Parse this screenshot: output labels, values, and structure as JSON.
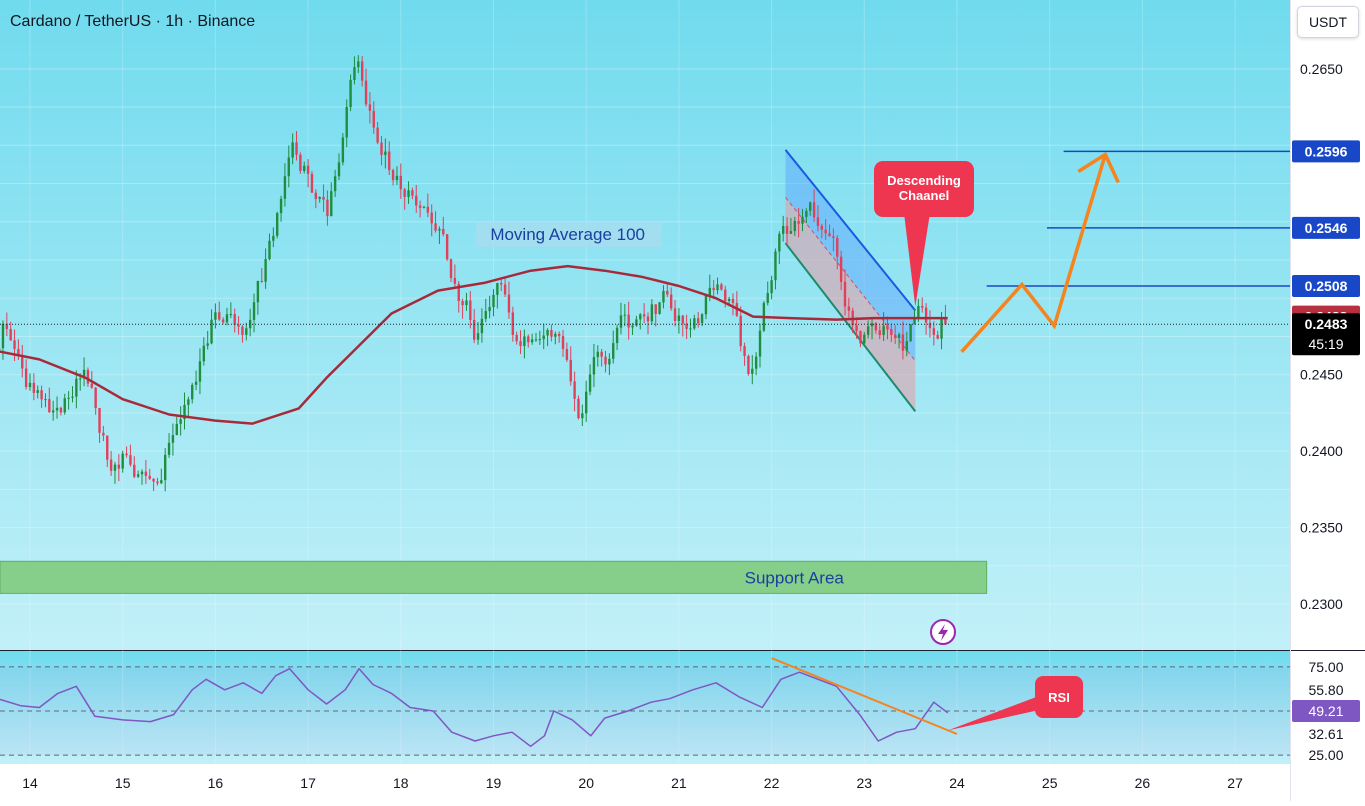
{
  "header": {
    "title": "Cardano / TetherUS · 1h · Binance",
    "currency_button": "USDT"
  },
  "colors": {
    "bg_top": "#70dbee",
    "bg_bottom": "#c2f0f8",
    "bull": "#1e8e3e",
    "bear": "#e0405a",
    "ma": "#a82a3a",
    "level": "#1848c8",
    "path": "#f5841f",
    "rsi": "#7e57c2",
    "support": "#86cf8a",
    "callout": "#ef3650"
  },
  "chart_data": [
    {
      "type": "candlestick",
      "symbol": "Cardano / TetherUS",
      "interval": "1h",
      "exchange": "Binance",
      "x_tick_labels": [
        "14",
        "15",
        "16",
        "17",
        "18",
        "19",
        "20",
        "21",
        "22",
        "23",
        "24",
        "25",
        "26",
        "27"
      ],
      "y_tick_labels": [
        "0.2650",
        "0.2450",
        "0.2400",
        "0.2350",
        "0.2300"
      ],
      "ylim": [
        0.227,
        0.2695
      ],
      "price_labels": [
        {
          "value": 0.2596,
          "label": "0.2596",
          "kind": "level"
        },
        {
          "value": 0.2546,
          "label": "0.2546",
          "kind": "level"
        },
        {
          "value": 0.2508,
          "label": "0.2508",
          "kind": "level"
        },
        {
          "value": 0.2488,
          "label": "0.2488",
          "kind": "ma"
        },
        {
          "value": 0.2483,
          "label": "0.2483",
          "kind": "last",
          "countdown": "45:19"
        }
      ],
      "last_price": 0.2483,
      "candle_anchors": [
        [
          13.35,
          0.239
        ],
        [
          13.7,
          0.248
        ],
        [
          13.95,
          0.244
        ],
        [
          14.2,
          0.242
        ],
        [
          14.45,
          0.2445
        ],
        [
          14.6,
          0.246
        ],
        [
          14.85,
          0.2395
        ],
        [
          15.1,
          0.2395
        ],
        [
          15.35,
          0.2385
        ],
        [
          15.7,
          0.244
        ],
        [
          16.0,
          0.249
        ],
        [
          16.35,
          0.249
        ],
        [
          16.6,
          0.253
        ],
        [
          16.85,
          0.26
        ],
        [
          17.2,
          0.255
        ],
        [
          17.55,
          0.266
        ],
        [
          17.7,
          0.262
        ],
        [
          17.9,
          0.259
        ],
        [
          18.3,
          0.256
        ],
        [
          18.6,
          0.251
        ],
        [
          18.8,
          0.248
        ],
        [
          19.05,
          0.25
        ],
        [
          19.3,
          0.246
        ],
        [
          19.55,
          0.249
        ],
        [
          19.75,
          0.246
        ],
        [
          19.9,
          0.242
        ],
        [
          20.1,
          0.245
        ],
        [
          20.3,
          0.247
        ],
        [
          20.6,
          0.249
        ],
        [
          20.85,
          0.25
        ],
        [
          21.05,
          0.248
        ],
        [
          21.3,
          0.25
        ],
        [
          21.55,
          0.249
        ],
        [
          21.75,
          0.245
        ],
        [
          21.9,
          0.249
        ],
        [
          22.1,
          0.2555
        ],
        [
          22.45,
          0.2555
        ],
        [
          22.7,
          0.253
        ],
        [
          22.9,
          0.248
        ],
        [
          23.1,
          0.247
        ],
        [
          23.3,
          0.247
        ],
        [
          23.45,
          0.246
        ],
        [
          23.6,
          0.249
        ],
        [
          23.75,
          0.246
        ],
        [
          23.9,
          0.249
        ]
      ],
      "moving_average": {
        "label": "Moving Average 100",
        "points": [
          [
            13.2,
            0.2475
          ],
          [
            13.6,
            0.2466
          ],
          [
            14.1,
            0.246
          ],
          [
            14.6,
            0.2448
          ],
          [
            15.0,
            0.2434
          ],
          [
            15.5,
            0.2424
          ],
          [
            16.0,
            0.242
          ],
          [
            16.4,
            0.2418
          ],
          [
            16.9,
            0.2428
          ],
          [
            17.2,
            0.2448
          ],
          [
            17.5,
            0.2466
          ],
          [
            17.9,
            0.249
          ],
          [
            18.4,
            0.2505
          ],
          [
            18.9,
            0.251
          ],
          [
            19.4,
            0.2518
          ],
          [
            19.8,
            0.2521
          ],
          [
            20.2,
            0.2518
          ],
          [
            20.6,
            0.2514
          ],
          [
            21.0,
            0.2508
          ],
          [
            21.4,
            0.25
          ],
          [
            21.8,
            0.2488
          ],
          [
            22.2,
            0.2487
          ],
          [
            22.7,
            0.2486
          ],
          [
            23.1,
            0.2487
          ],
          [
            23.5,
            0.2487
          ],
          [
            23.9,
            0.2487
          ]
        ]
      },
      "horizontal_levels": [
        {
          "value": 0.2596,
          "x_start": 25.15
        },
        {
          "value": 0.2546,
          "x_start": 24.97
        },
        {
          "value": 0.2508,
          "x_start": 24.32
        }
      ],
      "descending_channel": {
        "label": "Descending Chaanel",
        "upper": [
          [
            22.15,
            0.2597
          ],
          [
            23.55,
            0.2492
          ]
        ],
        "lower": [
          [
            22.15,
            0.2536
          ],
          [
            23.55,
            0.2426
          ]
        ],
        "mid": [
          [
            22.15,
            0.2566
          ],
          [
            23.55,
            0.2459
          ]
        ]
      },
      "projection_path": [
        [
          24.05,
          0.2465
        ],
        [
          24.7,
          0.2509
        ],
        [
          25.05,
          0.2482
        ],
        [
          25.6,
          0.2594
        ]
      ],
      "support_area": {
        "label": "Support Area",
        "y_top": 0.2328,
        "y_bottom": 0.2307,
        "x_end": 24.32
      }
    },
    {
      "type": "line",
      "name": "RSI",
      "x_tick_labels": [
        "14",
        "15",
        "16",
        "17",
        "18",
        "19",
        "20",
        "21",
        "22",
        "23",
        "24",
        "25",
        "26",
        "27"
      ],
      "y_tick_labels": [
        "75.00",
        "55.80",
        "49.21",
        "32.61",
        "25.00"
      ],
      "levels": [
        75,
        50,
        25
      ],
      "current_value": 49.21,
      "ylim": [
        20,
        84
      ],
      "points": [
        [
          13.2,
          50
        ],
        [
          13.45,
          70
        ],
        [
          13.65,
          57
        ],
        [
          13.9,
          53
        ],
        [
          14.1,
          52
        ],
        [
          14.3,
          60
        ],
        [
          14.5,
          64
        ],
        [
          14.7,
          47
        ],
        [
          15.0,
          45
        ],
        [
          15.3,
          44
        ],
        [
          15.55,
          48
        ],
        [
          15.75,
          62
        ],
        [
          15.9,
          68
        ],
        [
          16.1,
          62
        ],
        [
          16.3,
          66
        ],
        [
          16.5,
          60
        ],
        [
          16.65,
          70
        ],
        [
          16.8,
          74
        ],
        [
          17.0,
          62
        ],
        [
          17.2,
          54
        ],
        [
          17.4,
          62
        ],
        [
          17.55,
          74
        ],
        [
          17.7,
          65
        ],
        [
          17.9,
          60
        ],
        [
          18.1,
          52
        ],
        [
          18.35,
          50
        ],
        [
          18.55,
          38
        ],
        [
          18.8,
          33
        ],
        [
          19.0,
          36
        ],
        [
          19.2,
          38
        ],
        [
          19.4,
          30
        ],
        [
          19.55,
          36
        ],
        [
          19.65,
          50
        ],
        [
          19.85,
          45
        ],
        [
          20.05,
          36
        ],
        [
          20.2,
          46
        ],
        [
          20.45,
          50
        ],
        [
          20.7,
          55
        ],
        [
          20.9,
          57
        ],
        [
          21.15,
          62
        ],
        [
          21.4,
          66
        ],
        [
          21.65,
          58
        ],
        [
          21.9,
          52
        ],
        [
          22.1,
          68
        ],
        [
          22.3,
          72
        ],
        [
          22.5,
          68
        ],
        [
          22.7,
          64
        ],
        [
          22.95,
          48
        ],
        [
          23.15,
          33
        ],
        [
          23.35,
          38
        ],
        [
          23.55,
          40
        ],
        [
          23.75,
          55
        ],
        [
          23.9,
          49
        ]
      ],
      "trendline": [
        [
          22.0,
          80
        ],
        [
          24.0,
          37
        ]
      ],
      "callout": "RSI"
    }
  ]
}
